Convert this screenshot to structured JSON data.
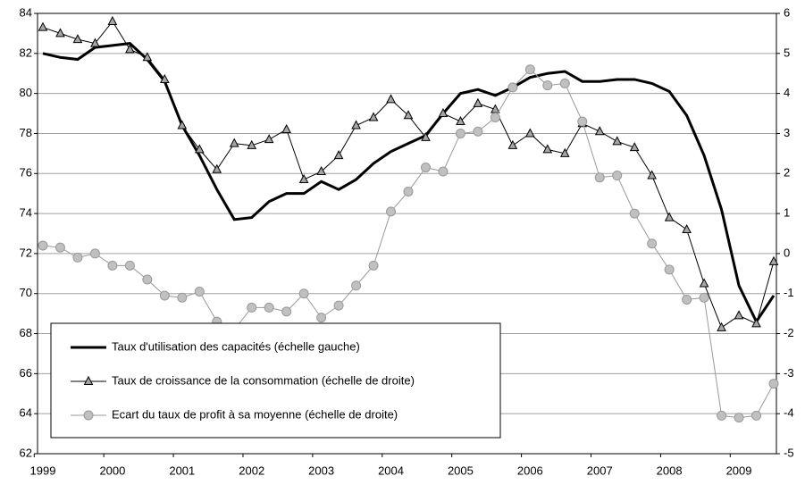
{
  "chart_data": {
    "type": "line",
    "categories": [
      "1999",
      null,
      null,
      null,
      "2000",
      null,
      null,
      null,
      "2001",
      null,
      null,
      null,
      "2002",
      null,
      null,
      null,
      "2003",
      null,
      null,
      null,
      "2004",
      null,
      null,
      null,
      "2005",
      null,
      null,
      null,
      "2006",
      null,
      null,
      null,
      "2007",
      null,
      null,
      null,
      "2008",
      null,
      null,
      null,
      "2009",
      null,
      null
    ],
    "ylim": [
      62,
      84
    ],
    "yticks": [
      62,
      64,
      66,
      68,
      70,
      72,
      74,
      76,
      78,
      80,
      82,
      84
    ],
    "y2lim": [
      -5,
      6
    ],
    "y2ticks": [
      -5,
      -4,
      -3,
      -2,
      -1,
      0,
      1,
      2,
      3,
      4,
      5,
      6
    ],
    "grid": true,
    "legend": "bottom-left",
    "series": [
      {
        "name": "Taux d'utilisation des capacités (échelle gauche)",
        "color": "#000000",
        "marker": "none",
        "axis": "y",
        "values": [
          82.0,
          81.8,
          81.7,
          82.3,
          82.4,
          82.5,
          81.7,
          80.6,
          78.4,
          76.9,
          75.2,
          73.7,
          73.8,
          74.6,
          75.0,
          75.0,
          75.6,
          75.2,
          75.7,
          76.5,
          77.1,
          77.5,
          77.9,
          79.0,
          80.0,
          80.2,
          79.9,
          80.3,
          80.8,
          81.0,
          81.1,
          80.6,
          80.6,
          80.7,
          80.7,
          80.5,
          80.1,
          78.9,
          76.9,
          74.2,
          70.4,
          68.6,
          69.9
        ]
      },
      {
        "name": "Taux de croissance de la consommation (échelle de droite)",
        "color": "#000000",
        "marker": "triangle",
        "axis": "y2",
        "values": [
          5.65,
          5.5,
          5.35,
          5.25,
          5.8,
          5.1,
          4.9,
          4.35,
          3.2,
          2.6,
          2.1,
          2.75,
          2.7,
          2.85,
          3.1,
          1.85,
          2.05,
          2.45,
          3.2,
          3.4,
          3.85,
          3.45,
          2.9,
          3.5,
          3.3,
          3.75,
          3.6,
          2.7,
          3.0,
          2.6,
          2.5,
          3.25,
          3.05,
          2.8,
          2.65,
          1.95,
          0.9,
          0.6,
          -0.75,
          -1.85,
          -1.55,
          -1.75,
          -0.2
        ]
      },
      {
        "name": "Ecart du taux de profit à sa moyenne (échelle de droite)",
        "color": "#999999",
        "marker": "circle",
        "axis": "y2",
        "values": [
          0.2,
          0.15,
          -0.1,
          0,
          -0.3,
          -0.3,
          -0.65,
          -1.05,
          -1.1,
          -0.95,
          -1.7,
          -1.9,
          -1.35,
          -1.35,
          -1.45,
          -1.0,
          -1.6,
          -1.3,
          -0.8,
          -0.3,
          1.05,
          1.55,
          2.15,
          2.05,
          3.0,
          3.05,
          3.4,
          4.15,
          4.6,
          4.2,
          4.25,
          3.3,
          1.9,
          1.95,
          1.0,
          0.25,
          -0.4,
          -1.15,
          -1.1,
          -4.05,
          -4.1,
          -4.05,
          -3.25
        ]
      }
    ]
  }
}
